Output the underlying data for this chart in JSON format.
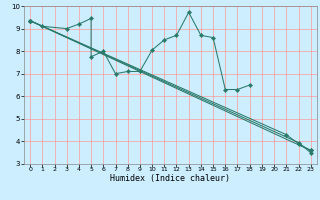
{
  "xlabel": "Humidex (Indice chaleur)",
  "bg_color": "#cceeff",
  "grid_color": "#ff9999",
  "line_color": "#2a7a6a",
  "xlim": [
    -0.5,
    23.5
  ],
  "ylim": [
    3,
    10
  ],
  "xticks": [
    0,
    1,
    2,
    3,
    4,
    5,
    6,
    7,
    8,
    9,
    10,
    11,
    12,
    13,
    14,
    15,
    16,
    17,
    18,
    19,
    20,
    21,
    22,
    23
  ],
  "yticks": [
    3,
    4,
    5,
    6,
    7,
    8,
    9,
    10
  ],
  "series": [
    {
      "x": [
        0,
        1,
        3,
        4,
        5,
        5,
        6,
        7,
        8,
        9,
        10,
        11,
        12,
        13,
        14,
        15,
        16,
        17,
        18
      ],
      "y": [
        9.35,
        9.1,
        9.0,
        9.2,
        9.45,
        7.75,
        8.0,
        7.0,
        7.1,
        7.1,
        8.05,
        8.5,
        8.7,
        9.72,
        8.7,
        8.6,
        6.3,
        6.3,
        6.5
      ]
    },
    {
      "x": [
        0,
        23
      ],
      "y": [
        9.35,
        3.6
      ]
    },
    {
      "x": [
        0,
        22,
        23
      ],
      "y": [
        9.35,
        3.95,
        3.5
      ]
    },
    {
      "x": [
        0,
        21,
        22,
        23
      ],
      "y": [
        9.35,
        4.3,
        3.9,
        3.6
      ]
    }
  ]
}
